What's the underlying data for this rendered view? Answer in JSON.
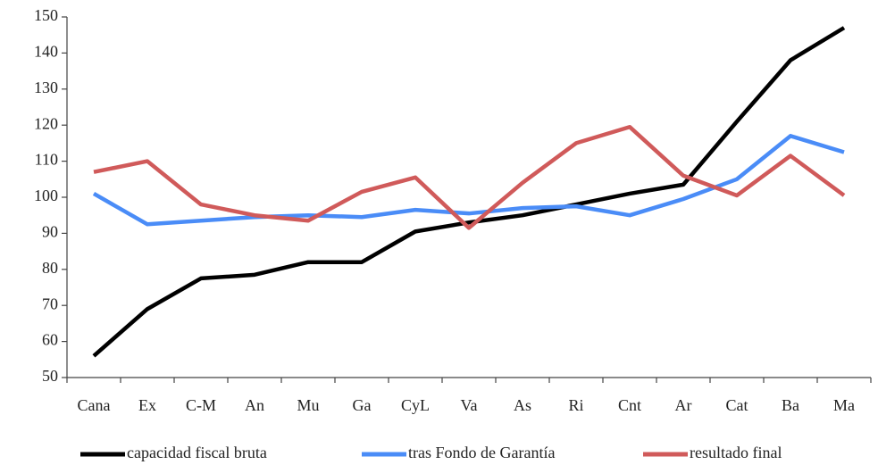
{
  "chart_data": {
    "type": "line",
    "categories": [
      "Cana",
      "Ex",
      "C-M",
      "An",
      "Mu",
      "Ga",
      "CyL",
      "Va",
      "As",
      "Ri",
      "Cnt",
      "Ar",
      "Cat",
      "Ba",
      "Ma"
    ],
    "series": [
      {
        "name": "capacidad fiscal bruta",
        "color": "#000000",
        "values": [
          56,
          69,
          77.5,
          78.5,
          82,
          82,
          90.5,
          93,
          95,
          98,
          101,
          103.5,
          121,
          138,
          147
        ]
      },
      {
        "name": "tras Fondo de Garantía",
        "color": "#4a8cf7",
        "values": [
          101,
          92.5,
          93.5,
          94.5,
          95,
          94.5,
          96.5,
          95.5,
          97,
          97.5,
          95,
          99.5,
          105,
          117,
          112.5
        ]
      },
      {
        "name": "resultado final",
        "color": "#d05a5a",
        "values": [
          107,
          110,
          98,
          95,
          93.5,
          101.5,
          105.5,
          91.5,
          104,
          115,
          119.5,
          106,
          100.5,
          111.5,
          100.5
        ]
      }
    ],
    "ylim": [
      50,
      150
    ],
    "yticks": [
      50,
      60,
      70,
      80,
      90,
      100,
      110,
      120,
      130,
      140,
      150
    ],
    "legend": "bottom"
  }
}
